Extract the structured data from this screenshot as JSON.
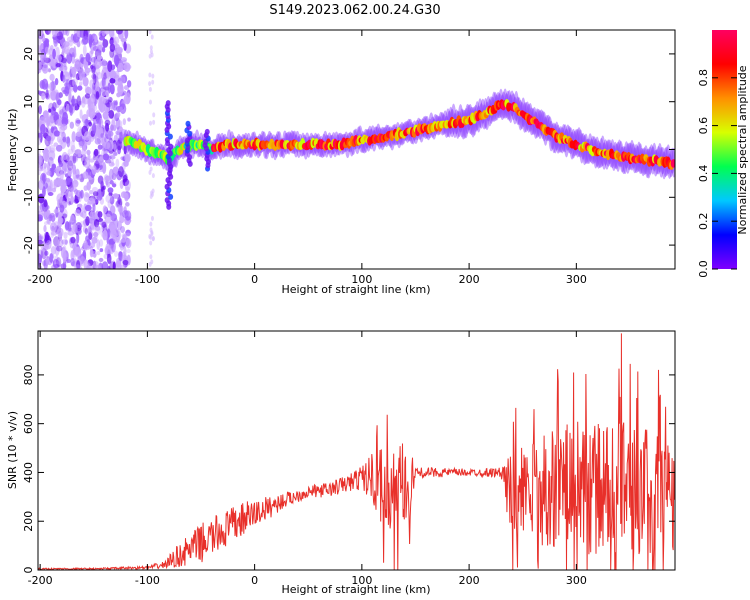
{
  "title": "S149.2023.062.00.24.G30",
  "colors": {
    "snr_line": "#e8302a",
    "axis": "#000000",
    "gradient": [
      "#7f00ff",
      "#0000ff",
      "#00c8ff",
      "#00ff50",
      "#d8ff00",
      "#ff9000",
      "#ff0000",
      "#ff0060"
    ]
  },
  "chart_data": [
    {
      "type": "heatmap",
      "title": "S149.2023.062.00.24.G30",
      "xlabel": "Height of straight line (km)",
      "ylabel": "Frequency (Hz)",
      "xlim": [
        -202,
        392
      ],
      "ylim": [
        -25,
        25
      ],
      "xticks": [
        -200,
        -100,
        0,
        100,
        200,
        300
      ],
      "yticks": [
        -20,
        -10,
        0,
        10,
        20
      ],
      "ridge": {
        "description": "dominant frequency track (Hz) vs height (km)",
        "x": [
          -120,
          -110,
          -100,
          -90,
          -80,
          -70,
          -60,
          -50,
          -40,
          -30,
          -20,
          -10,
          0,
          20,
          40,
          60,
          80,
          100,
          120,
          140,
          160,
          180,
          200,
          210,
          220,
          230,
          240,
          250,
          260,
          270,
          280,
          300,
          320,
          340,
          360,
          380,
          390
        ],
        "y": [
          2,
          1,
          0,
          -1,
          -2,
          0,
          1,
          1,
          0,
          1,
          1,
          1,
          1,
          1,
          1,
          1,
          1,
          2,
          2.5,
          3.5,
          4.5,
          5.5,
          6,
          7,
          8,
          9.5,
          9,
          7.5,
          6,
          4.5,
          3,
          1,
          -0.5,
          -1.5,
          -2,
          -2.5,
          -3
        ]
      },
      "noise_region_km": [
        -202,
        -117
      ],
      "colorbar": {
        "label": "Normalized spectral amplitude",
        "range": [
          0,
          1
        ],
        "ticks": [
          0.0,
          0.2,
          0.4,
          0.6,
          0.8
        ],
        "tick_labels": [
          "0.0",
          "0.2",
          "0.4",
          "0.6",
          "0.8"
        ]
      }
    },
    {
      "type": "line",
      "xlabel": "Height of straight line (km)",
      "ylabel": "SNR (10 * v/v)",
      "xlim": [
        -202,
        392
      ],
      "ylim": [
        0,
        980
      ],
      "xticks": [
        -200,
        -100,
        0,
        100,
        200,
        300
      ],
      "yticks": [
        0,
        200,
        400,
        600,
        800
      ],
      "envelope": {
        "description": "approximate mean SNR and fluctuation amplitude vs height",
        "x": [
          -202,
          -150,
          -100,
          -85,
          -70,
          -50,
          -30,
          -10,
          10,
          30,
          50,
          70,
          90,
          100,
          110,
          120,
          125,
          130,
          140,
          145,
          150,
          170,
          200,
          230,
          235,
          240,
          260,
          280,
          300,
          320,
          340,
          360,
          380,
          392
        ],
        "mean": [
          5,
          5,
          10,
          20,
          60,
          110,
          160,
          210,
          250,
          290,
          320,
          330,
          360,
          380,
          380,
          330,
          260,
          300,
          330,
          350,
          400,
          400,
          400,
          400,
          330,
          300,
          320,
          340,
          340,
          330,
          330,
          330,
          320,
          320
        ],
        "amp": [
          3,
          3,
          6,
          15,
          50,
          80,
          80,
          70,
          50,
          30,
          25,
          30,
          40,
          50,
          110,
          170,
          190,
          200,
          200,
          150,
          20,
          20,
          15,
          20,
          150,
          200,
          220,
          250,
          270,
          280,
          280,
          270,
          260,
          260
        ]
      },
      "peak": {
        "x": 342,
        "y": 970
      },
      "annotations": []
    }
  ]
}
